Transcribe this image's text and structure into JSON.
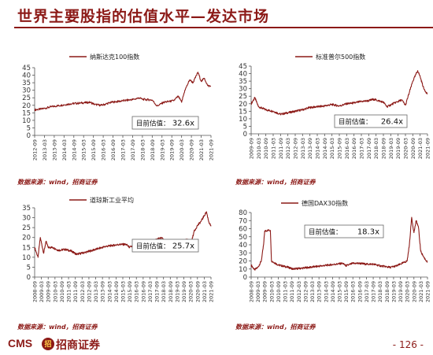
{
  "page": {
    "title": "世界主要股指的估值水平—发达市场",
    "source_label": "数据来源：wind，招商证券",
    "brand": {
      "cms": "CMS",
      "logo": "招",
      "cn": "招商证券"
    },
    "page_number": "- 126 -"
  },
  "theme": {
    "accent": "#8c1a17",
    "line": "#8c1a17"
  },
  "chart_data": [
    {
      "type": "line",
      "series": [
        {
          "name": "纳斯达克100指数"
        }
      ],
      "ylim": [
        0,
        45
      ],
      "yticks": [
        0,
        5,
        10,
        15,
        20,
        25,
        30,
        35,
        40,
        45
      ],
      "x_start": "2012-09",
      "x_end": "2021-09",
      "xticks": [
        "2012-09",
        "2013-03",
        "2013-09",
        "2014-03",
        "2014-09",
        "2015-03",
        "2015-09",
        "2016-03",
        "2016-09",
        "2017-03",
        "2017-09",
        "2018-03",
        "2018-09",
        "2019-03",
        "2019-09",
        "2020-03",
        "2020-09",
        "2021-03",
        "2021-09"
      ],
      "points": [
        [
          "2012-09",
          17
        ],
        [
          "2013-01",
          17.5
        ],
        [
          "2013-07",
          19
        ],
        [
          "2014-01",
          20
        ],
        [
          "2014-07",
          21
        ],
        [
          "2015-01",
          21.5
        ],
        [
          "2015-07",
          22
        ],
        [
          "2015-10",
          20.5
        ],
        [
          "2016-02",
          20
        ],
        [
          "2016-08",
          22
        ],
        [
          "2017-03",
          23
        ],
        [
          "2017-10",
          24
        ],
        [
          "2018-01",
          25
        ],
        [
          "2018-03",
          24
        ],
        [
          "2018-09",
          23.5
        ],
        [
          "2018-12",
          19.5
        ],
        [
          "2019-04",
          22
        ],
        [
          "2019-10",
          23
        ],
        [
          "2020-01",
          26
        ],
        [
          "2020-03",
          22
        ],
        [
          "2020-05",
          30
        ],
        [
          "2020-08",
          37
        ],
        [
          "2020-10",
          35
        ],
        [
          "2021-01",
          42
        ],
        [
          "2021-03",
          36
        ],
        [
          "2021-05",
          38
        ],
        [
          "2021-07",
          33
        ],
        [
          "2021-09",
          32.6
        ]
      ],
      "annotation": {
        "label": "目前估值：",
        "value": "32.6x"
      }
    },
    {
      "type": "line",
      "series": [
        {
          "name": "标准普尔500指数"
        }
      ],
      "ylim": [
        0,
        45
      ],
      "yticks": [
        0,
        5,
        10,
        15,
        20,
        25,
        30,
        35,
        40,
        45
      ],
      "x_start": "2009-09",
      "x_end": "2021-09",
      "xticks": [
        "2009-09",
        "2010-03",
        "2010-09",
        "2011-03",
        "2011-09",
        "2012-03",
        "2012-09",
        "2013-03",
        "2013-09",
        "2014-03",
        "2014-09",
        "2015-03",
        "2015-09",
        "2016-03",
        "2016-09",
        "2017-03",
        "2017-09",
        "2018-03",
        "2018-09",
        "2019-03",
        "2019-09",
        "2020-03",
        "2020-09",
        "2021-03",
        "2021-09"
      ],
      "points": [
        [
          "2009-09",
          20
        ],
        [
          "2009-12",
          24
        ],
        [
          "2010-03",
          18
        ],
        [
          "2010-09",
          16
        ],
        [
          "2011-03",
          15
        ],
        [
          "2011-09",
          13
        ],
        [
          "2012-03",
          14
        ],
        [
          "2012-09",
          15
        ],
        [
          "2013-03",
          16
        ],
        [
          "2013-09",
          17.5
        ],
        [
          "2014-03",
          18
        ],
        [
          "2014-09",
          18.5
        ],
        [
          "2015-03",
          19.5
        ],
        [
          "2015-09",
          18.5
        ],
        [
          "2016-03",
          20
        ],
        [
          "2016-09",
          20.5
        ],
        [
          "2017-03",
          21.5
        ],
        [
          "2017-09",
          22
        ],
        [
          "2018-01",
          23
        ],
        [
          "2018-09",
          21
        ],
        [
          "2018-12",
          18
        ],
        [
          "2019-06",
          20.5
        ],
        [
          "2019-12",
          22.5
        ],
        [
          "2020-03",
          19
        ],
        [
          "2020-06",
          27
        ],
        [
          "2020-09",
          35
        ],
        [
          "2021-01",
          42
        ],
        [
          "2021-03",
          38
        ],
        [
          "2021-06",
          30
        ],
        [
          "2021-09",
          26.4
        ]
      ],
      "annotation": {
        "label": "目前估值：",
        "value": "26.4x"
      }
    },
    {
      "type": "line",
      "series": [
        {
          "name": "道琼斯工业平均"
        }
      ],
      "ylim": [
        0,
        35
      ],
      "yticks": [
        0,
        5,
        10,
        15,
        20,
        25,
        30,
        35
      ],
      "x_start": "2008-09",
      "x_end": "2021-09",
      "xticks": [
        "2008-09",
        "2009-03",
        "2009-09",
        "2010-03",
        "2010-09",
        "2011-03",
        "2011-09",
        "2012-03",
        "2012-09",
        "2013-03",
        "2013-09",
        "2014-03",
        "2014-09",
        "2015-03",
        "2015-09",
        "2016-03",
        "2016-09",
        "2017-03",
        "2017-09",
        "2018-03",
        "2018-09",
        "2019-03",
        "2019-09",
        "2020-03",
        "2020-09",
        "2021-03",
        "2021-09"
      ],
      "points": [
        [
          "2008-09",
          15
        ],
        [
          "2008-12",
          10
        ],
        [
          "2009-02",
          20
        ],
        [
          "2009-05",
          12
        ],
        [
          "2009-07",
          18
        ],
        [
          "2009-09",
          15
        ],
        [
          "2010-01",
          15
        ],
        [
          "2010-06",
          13.5
        ],
        [
          "2010-12",
          14
        ],
        [
          "2011-06",
          13
        ],
        [
          "2011-10",
          11.5
        ],
        [
          "2012-06",
          12.5
        ],
        [
          "2012-12",
          13.5
        ],
        [
          "2013-06",
          14.5
        ],
        [
          "2013-12",
          15.5
        ],
        [
          "2014-06",
          16
        ],
        [
          "2014-12",
          16.5
        ],
        [
          "2015-06",
          16.5
        ],
        [
          "2015-09",
          15
        ],
        [
          "2016-03",
          16.5
        ],
        [
          "2016-09",
          17
        ],
        [
          "2017-03",
          18
        ],
        [
          "2017-09",
          19
        ],
        [
          "2018-01",
          20
        ],
        [
          "2018-06",
          17
        ],
        [
          "2018-12",
          15.5
        ],
        [
          "2019-06",
          17
        ],
        [
          "2019-12",
          19
        ],
        [
          "2020-03",
          16
        ],
        [
          "2020-06",
          23
        ],
        [
          "2020-09",
          26
        ],
        [
          "2020-12",
          28
        ],
        [
          "2021-03",
          31
        ],
        [
          "2021-05",
          33
        ],
        [
          "2021-07",
          28
        ],
        [
          "2021-09",
          25.7
        ]
      ],
      "annotation": {
        "label": "目前估值：",
        "value": "25.7x"
      }
    },
    {
      "type": "line",
      "series": [
        {
          "name": "德国DAX30指数"
        }
      ],
      "ylim": [
        0,
        80
      ],
      "yticks": [
        0,
        10,
        20,
        30,
        40,
        50,
        60,
        70,
        80
      ],
      "x_start": "2008-09",
      "x_end": "2021-09",
      "xticks": [
        "2008-09",
        "2009-03",
        "2009-09",
        "2010-03",
        "2010-09",
        "2011-03",
        "2011-09",
        "2012-03",
        "2012-09",
        "2013-03",
        "2013-09",
        "2014-03",
        "2014-09",
        "2015-03",
        "2015-09",
        "2016-03",
        "2016-09",
        "2017-03",
        "2017-09",
        "2018-03",
        "2018-09",
        "2019-03",
        "2019-09",
        "2020-03",
        "2020-09",
        "2021-03",
        "2021-09"
      ],
      "points": [
        [
          "2008-09",
          15
        ],
        [
          "2008-12",
          9
        ],
        [
          "2009-03",
          12
        ],
        [
          "2009-06",
          20
        ],
        [
          "2009-08",
          40
        ],
        [
          "2009-09",
          57
        ],
        [
          "2009-12",
          58
        ],
        [
          "2010-02",
          58
        ],
        [
          "2010-03",
          20
        ],
        [
          "2010-09",
          15
        ],
        [
          "2011-06",
          12
        ],
        [
          "2011-10",
          10
        ],
        [
          "2012-06",
          11
        ],
        [
          "2012-12",
          12
        ],
        [
          "2013-06",
          13
        ],
        [
          "2013-12",
          14
        ],
        [
          "2014-06",
          15
        ],
        [
          "2014-12",
          16
        ],
        [
          "2015-06",
          17
        ],
        [
          "2015-09",
          14
        ],
        [
          "2016-03",
          17
        ],
        [
          "2016-09",
          17
        ],
        [
          "2017-03",
          16
        ],
        [
          "2017-09",
          16
        ],
        [
          "2018-03",
          14
        ],
        [
          "2018-12",
          12
        ],
        [
          "2019-06",
          14
        ],
        [
          "2019-12",
          18
        ],
        [
          "2020-03",
          20
        ],
        [
          "2020-05",
          40
        ],
        [
          "2020-07",
          74
        ],
        [
          "2020-09",
          55
        ],
        [
          "2020-11",
          70
        ],
        [
          "2021-01",
          62
        ],
        [
          "2021-03",
          32
        ],
        [
          "2021-06",
          24
        ],
        [
          "2021-09",
          18.3
        ]
      ],
      "annotation": {
        "label": "目前估值：",
        "value": "18.3x"
      }
    }
  ]
}
